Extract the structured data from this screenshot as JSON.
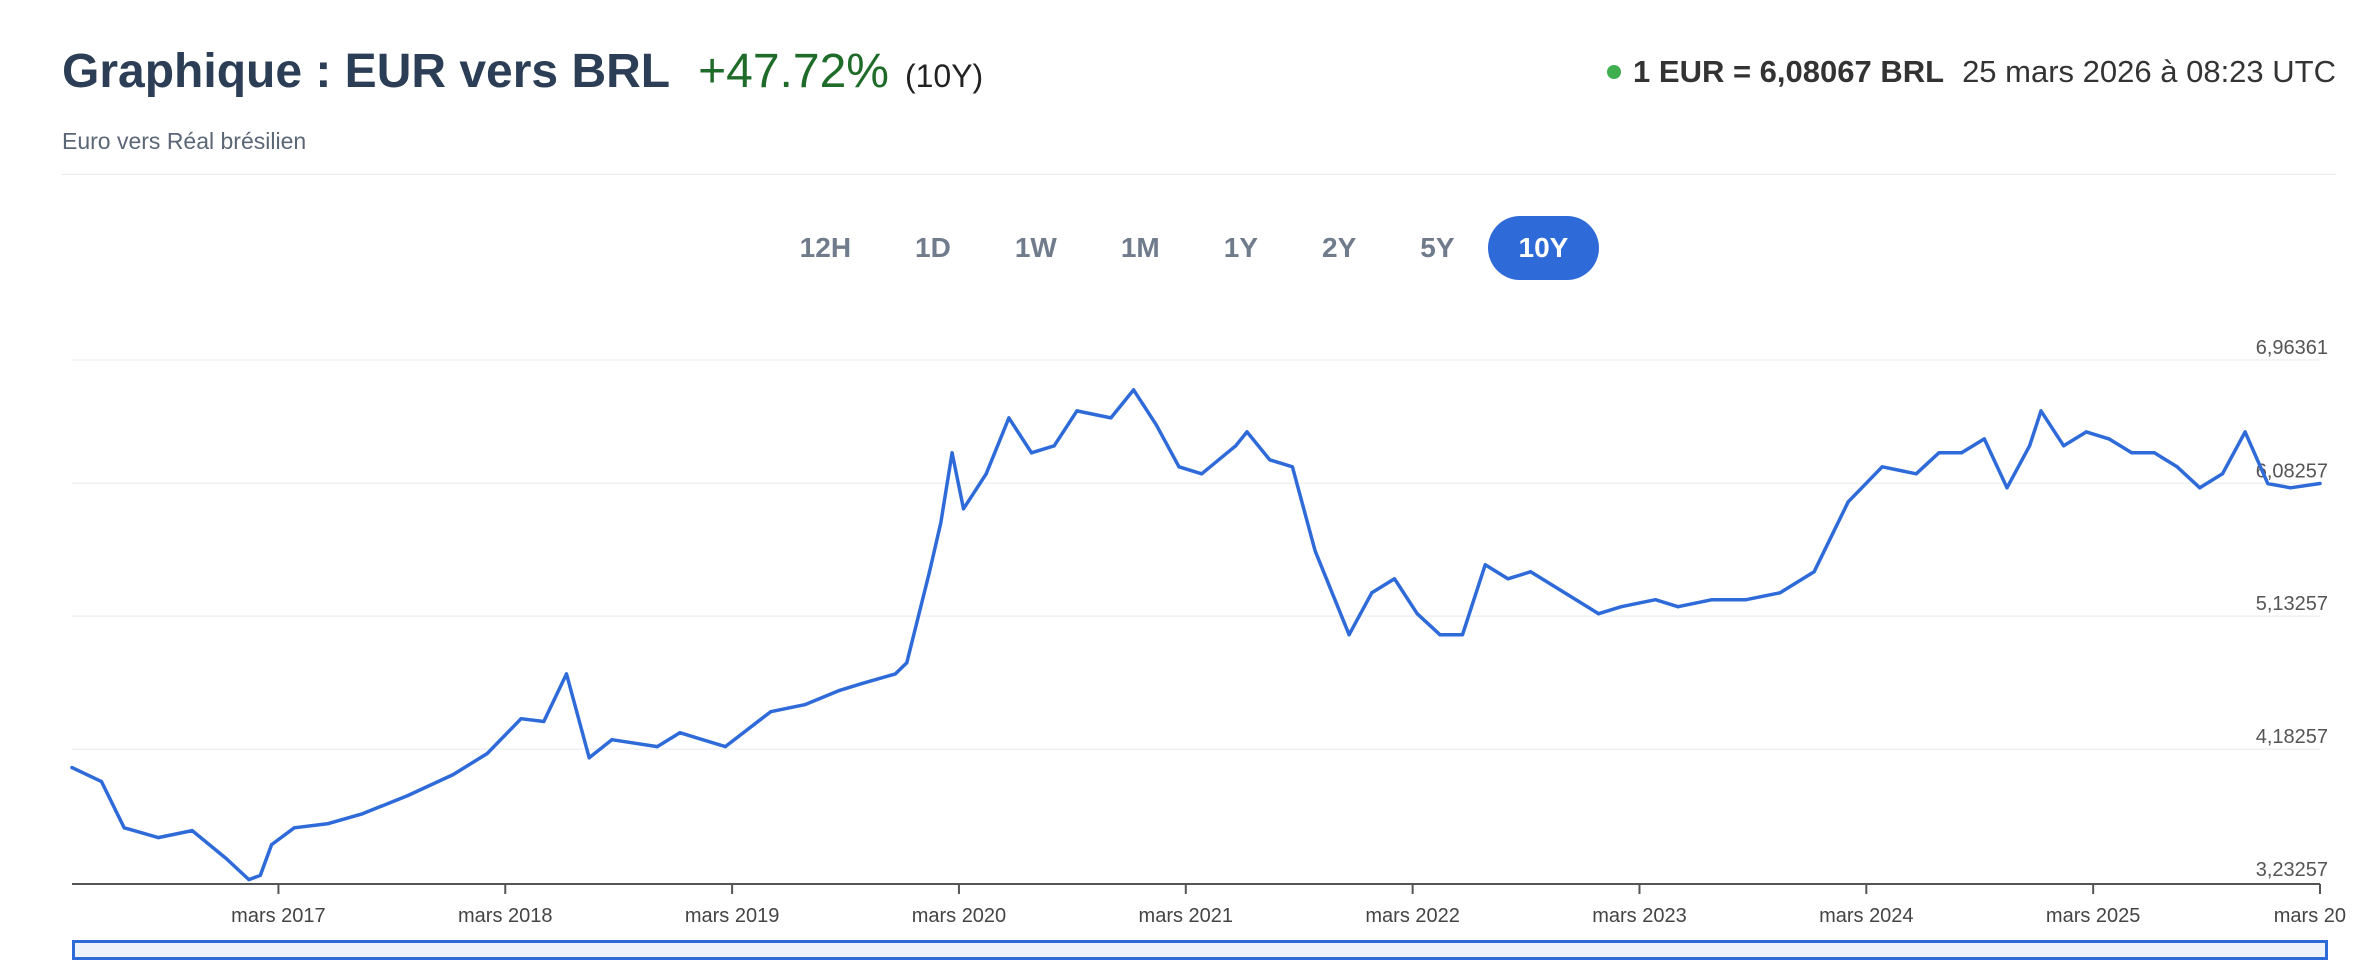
{
  "header": {
    "title": "Graphique : EUR vers BRL",
    "change": "+47.72%",
    "period": "(10Y)",
    "subtitle": "Euro vers Réal brésilien",
    "rate": "1 EUR = 6,08067 BRL",
    "timestamp": "25 mars 2026 à 08:23 UTC"
  },
  "tabs": [
    {
      "label": "12H",
      "active": false
    },
    {
      "label": "1D",
      "active": false
    },
    {
      "label": "1W",
      "active": false
    },
    {
      "label": "1M",
      "active": false
    },
    {
      "label": "1Y",
      "active": false
    },
    {
      "label": "2Y",
      "active": false
    },
    {
      "label": "5Y",
      "active": false
    },
    {
      "label": "10Y",
      "active": true
    }
  ],
  "colors": {
    "line": "#2e6bd9",
    "positive": "#1f6b2a",
    "status_dot": "#3fae4f",
    "active_tab": "#2e6bd9"
  },
  "chart_data": {
    "type": "line",
    "title": "",
    "xlabel": "",
    "ylabel": "",
    "y_ticks": [
      "6,96361",
      "6,08257",
      "5,13257",
      "4,18257",
      "3,23257"
    ],
    "y_tick_values": [
      6.96361,
      6.08257,
      5.13257,
      4.18257,
      3.23257
    ],
    "ylim": [
      3.23257,
      6.96361
    ],
    "x_tick_labels": [
      "mars 2017",
      "mars 2018",
      "mars 2019",
      "mars 2020",
      "mars 2021",
      "mars 2022",
      "mars 2023",
      "mars 2024",
      "mars 2025",
      "mars 20"
    ],
    "x_tick_years": [
      2017.23,
      2018.23,
      2019.23,
      2020.23,
      2021.23,
      2022.23,
      2023.23,
      2024.23,
      2025.23,
      2026.23
    ],
    "xlim": [
      2016.32,
      2026.23
    ],
    "grid": true,
    "series": [
      {
        "x": [
          2016.32,
          2016.45,
          2016.55,
          2016.7,
          2016.85,
          2017.0,
          2017.1,
          2017.15,
          2017.2,
          2017.3,
          2017.45,
          2017.6,
          2017.8,
          2018.0,
          2018.15,
          2018.3,
          2018.4,
          2018.5,
          2018.6,
          2018.7,
          2018.9,
          2019.0,
          2019.1,
          2019.2,
          2019.4,
          2019.55,
          2019.7,
          2019.8,
          2019.95,
          2020.0,
          2020.1,
          2020.15,
          2020.2,
          2020.25,
          2020.35,
          2020.45,
          2020.55,
          2020.65,
          2020.75,
          2020.9,
          2021.0,
          2021.1,
          2021.2,
          2021.3,
          2021.45,
          2021.5,
          2021.6,
          2021.7,
          2021.8,
          2021.95,
          2022.05,
          2022.15,
          2022.25,
          2022.35,
          2022.45,
          2022.55,
          2022.65,
          2022.75,
          2022.85,
          2022.95,
          2023.05,
          2023.15,
          2023.3,
          2023.4,
          2023.55,
          2023.7,
          2023.85,
          2024.0,
          2024.15,
          2024.3,
          2024.45,
          2024.55,
          2024.65,
          2024.75,
          2024.85,
          2024.95,
          2025.0,
          2025.1,
          2025.2,
          2025.3,
          2025.4,
          2025.5,
          2025.6,
          2025.7,
          2025.8,
          2025.9,
          2026.0,
          2026.1,
          2026.23
        ],
        "y": [
          4.05,
          3.95,
          3.62,
          3.55,
          3.6,
          3.4,
          3.25,
          3.28,
          3.5,
          3.62,
          3.65,
          3.72,
          3.85,
          4.0,
          4.15,
          4.4,
          4.38,
          4.72,
          4.12,
          4.25,
          4.2,
          4.3,
          4.25,
          4.2,
          4.45,
          4.5,
          4.6,
          4.65,
          4.72,
          4.8,
          5.45,
          5.8,
          6.3,
          5.9,
          6.15,
          6.55,
          6.3,
          6.35,
          6.6,
          6.55,
          6.75,
          6.5,
          6.2,
          6.15,
          6.35,
          6.45,
          6.25,
          6.2,
          5.6,
          5.0,
          5.3,
          5.4,
          5.15,
          5.0,
          5.0,
          5.5,
          5.4,
          5.45,
          5.35,
          5.25,
          5.15,
          5.2,
          5.25,
          5.2,
          5.25,
          5.25,
          5.3,
          5.45,
          5.95,
          6.2,
          6.15,
          6.3,
          6.3,
          6.4,
          6.05,
          6.35,
          6.6,
          6.35,
          6.45,
          6.4,
          6.3,
          6.3,
          6.2,
          6.05,
          6.15,
          6.45,
          6.08,
          6.05,
          6.08067
        ]
      }
    ]
  }
}
